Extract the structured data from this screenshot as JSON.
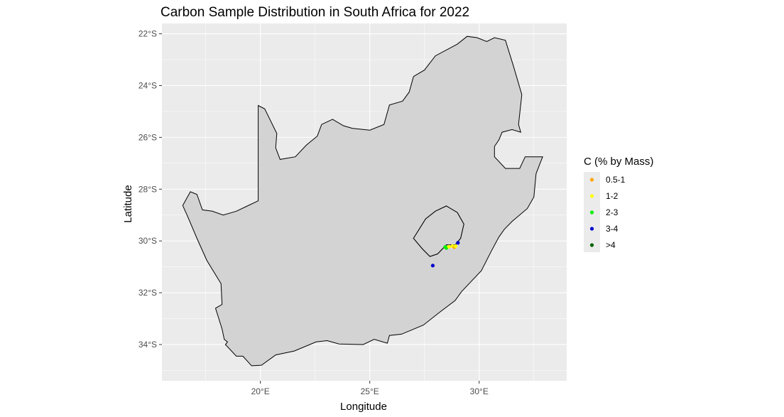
{
  "chart_data": {
    "type": "scatter",
    "title": "Carbon Sample Distribution in South Africa for 2022",
    "xlabel": "Longitude",
    "ylabel": "Latitude",
    "xlim": [
      15.5,
      34.0
    ],
    "ylim": [
      -35.4,
      -21.6
    ],
    "x_ticks": [
      {
        "value": 20,
        "label": "20°E"
      },
      {
        "value": 25,
        "label": "25°E"
      },
      {
        "value": 30,
        "label": "30°E"
      }
    ],
    "y_ticks": [
      {
        "value": -22,
        "label": "22°S"
      },
      {
        "value": -24,
        "label": "24°S"
      },
      {
        "value": -26,
        "label": "26°S"
      },
      {
        "value": -28,
        "label": "28°S"
      },
      {
        "value": -30,
        "label": "30°S"
      },
      {
        "value": -32,
        "label": "32°S"
      },
      {
        "value": -34,
        "label": "34°S"
      }
    ],
    "grid": true,
    "legend": {
      "title": "C (% by Mass)",
      "position": "right",
      "entries": [
        {
          "label": "0.5-1",
          "color": "#FFA500"
        },
        {
          "label": "1-2",
          "color": "#FFFF00"
        },
        {
          "label": "2-3",
          "color": "#00EE00"
        },
        {
          "label": "3-4",
          "color": "#0000CD"
        },
        {
          "label": ">4",
          "color": "#006400"
        }
      ]
    },
    "colors": {
      "panel_background": "#EBEBEB",
      "grid": "#FFFFFF",
      "land_fill": "#D3D3D3",
      "border": "#000000"
    },
    "boundary": [
      [
        16.45,
        -28.63
      ],
      [
        16.8,
        -28.1
      ],
      [
        17.1,
        -28.2
      ],
      [
        17.35,
        -28.8
      ],
      [
        17.8,
        -28.85
      ],
      [
        18.3,
        -29.0
      ],
      [
        18.9,
        -28.85
      ],
      [
        19.4,
        -28.65
      ],
      [
        19.9,
        -28.45
      ],
      [
        19.9,
        -24.77
      ],
      [
        20.2,
        -24.9
      ],
      [
        20.75,
        -25.85
      ],
      [
        20.7,
        -26.4
      ],
      [
        20.9,
        -26.85
      ],
      [
        21.6,
        -26.75
      ],
      [
        22.1,
        -26.3
      ],
      [
        22.6,
        -25.95
      ],
      [
        22.8,
        -25.5
      ],
      [
        23.3,
        -25.3
      ],
      [
        23.8,
        -25.55
      ],
      [
        24.2,
        -25.65
      ],
      [
        25.0,
        -25.72
      ],
      [
        25.65,
        -25.5
      ],
      [
        25.9,
        -24.75
      ],
      [
        26.5,
        -24.6
      ],
      [
        26.8,
        -24.25
      ],
      [
        27.0,
        -23.65
      ],
      [
        27.5,
        -23.4
      ],
      [
        28.0,
        -22.85
      ],
      [
        29.0,
        -22.4
      ],
      [
        29.45,
        -22.1
      ],
      [
        29.9,
        -22.15
      ],
      [
        30.35,
        -22.3
      ],
      [
        30.7,
        -22.15
      ],
      [
        31.2,
        -22.25
      ],
      [
        31.55,
        -23.2
      ],
      [
        31.95,
        -24.35
      ],
      [
        31.8,
        -25.5
      ],
      [
        31.9,
        -25.8
      ],
      [
        31.5,
        -25.7
      ],
      [
        31.05,
        -25.8
      ],
      [
        30.9,
        -26.1
      ],
      [
        30.7,
        -26.35
      ],
      [
        30.7,
        -26.75
      ],
      [
        31.2,
        -27.2
      ],
      [
        31.85,
        -27.2
      ],
      [
        32.1,
        -26.75
      ],
      [
        32.9,
        -26.75
      ],
      [
        32.6,
        -27.4
      ],
      [
        32.5,
        -28.3
      ],
      [
        32.2,
        -28.75
      ],
      [
        31.5,
        -29.25
      ],
      [
        31.15,
        -29.55
      ],
      [
        30.9,
        -29.85
      ],
      [
        30.55,
        -30.4
      ],
      [
        30.1,
        -31.15
      ],
      [
        29.2,
        -31.95
      ],
      [
        28.9,
        -32.3
      ],
      [
        28.2,
        -32.75
      ],
      [
        27.45,
        -33.25
      ],
      [
        26.45,
        -33.6
      ],
      [
        25.9,
        -33.65
      ],
      [
        25.8,
        -33.95
      ],
      [
        25.2,
        -33.8
      ],
      [
        24.7,
        -34.0
      ],
      [
        23.6,
        -33.98
      ],
      [
        23.05,
        -33.85
      ],
      [
        22.55,
        -33.9
      ],
      [
        21.55,
        -34.25
      ],
      [
        20.7,
        -34.4
      ],
      [
        20.05,
        -34.8
      ],
      [
        19.6,
        -34.82
      ],
      [
        19.2,
        -34.45
      ],
      [
        18.9,
        -34.45
      ],
      [
        18.4,
        -34.0
      ],
      [
        18.5,
        -33.9
      ],
      [
        18.35,
        -33.8
      ],
      [
        18.25,
        -33.4
      ],
      [
        17.95,
        -32.6
      ],
      [
        18.25,
        -32.45
      ],
      [
        18.2,
        -31.65
      ],
      [
        17.55,
        -30.75
      ],
      [
        17.1,
        -29.9
      ],
      [
        16.7,
        -29.1
      ]
    ],
    "enclave_lesotho": [
      [
        27.0,
        -29.9
      ],
      [
        27.55,
        -29.15
      ],
      [
        28.0,
        -28.85
      ],
      [
        28.5,
        -28.65
      ],
      [
        29.0,
        -28.9
      ],
      [
        29.3,
        -29.35
      ],
      [
        29.15,
        -29.9
      ],
      [
        28.9,
        -30.15
      ],
      [
        28.5,
        -30.15
      ],
      [
        28.1,
        -30.5
      ],
      [
        27.75,
        -30.6
      ],
      [
        27.4,
        -30.3
      ]
    ],
    "points": [
      {
        "lon": 28.45,
        "lat": -30.23,
        "category": "2-3"
      },
      {
        "lon": 28.5,
        "lat": -30.27,
        "category": "2-3"
      },
      {
        "lon": 28.62,
        "lat": -30.22,
        "category": "1-2"
      },
      {
        "lon": 28.78,
        "lat": -30.2,
        "category": "1-2"
      },
      {
        "lon": 28.87,
        "lat": -30.24,
        "category": "0.5-1"
      },
      {
        "lon": 28.92,
        "lat": -30.2,
        "category": "1-2"
      },
      {
        "lon": 29.03,
        "lat": -30.07,
        "category": "3-4"
      },
      {
        "lon": 27.88,
        "lat": -30.95,
        "category": "3-4"
      }
    ]
  }
}
